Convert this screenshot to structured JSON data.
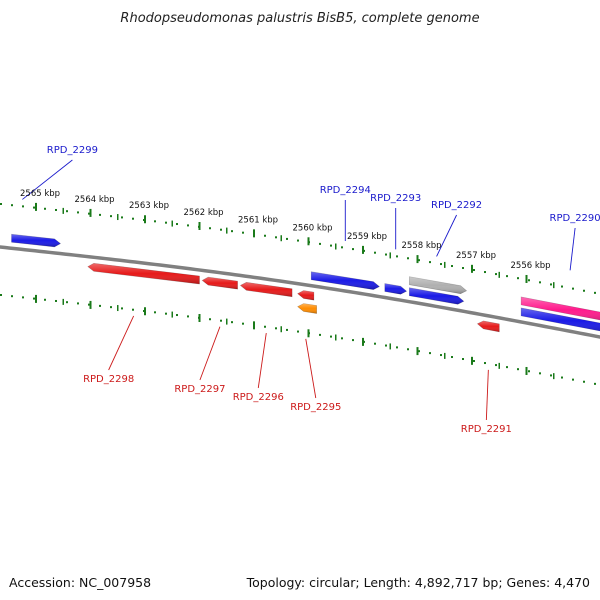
{
  "title": "Rhodopseudomonas palustris BisB5, complete genome",
  "footer": {
    "accession": "Accession: NC_007958",
    "summary": "Topology: circular; Length: 4,892,717 bp; Genes: 4,470"
  },
  "colors": {
    "backbone": "#808080",
    "tick": "#1a7a1a",
    "forward_label": "#1a1acc",
    "reverse_label": "#cc1a1a"
  },
  "tick_labels": [
    {
      "text": "2565 kbp",
      "kbp": 2565
    },
    {
      "text": "2564 kbp",
      "kbp": 2564
    },
    {
      "text": "2563 kbp",
      "kbp": 2563
    },
    {
      "text": "2562 kbp",
      "kbp": 2562
    },
    {
      "text": "2561 kbp",
      "kbp": 2561
    },
    {
      "text": "2560 kbp",
      "kbp": 2560
    },
    {
      "text": "2559 kbp",
      "kbp": 2559
    },
    {
      "text": "2558 kbp",
      "kbp": 2558
    },
    {
      "text": "2557 kbp",
      "kbp": 2557
    },
    {
      "text": "2556 kbp",
      "kbp": 2556
    }
  ],
  "genes": [
    {
      "label": "",
      "strand": "forward",
      "start_kbp": 2565.45,
      "end_kbp": 2564.55,
      "color": "#1a1ae6"
    },
    {
      "label": "RPD_2299",
      "strand": "forward",
      "start_kbp": 2565.3,
      "end_kbp": 2565.2,
      "color": "#1a1ae6",
      "label_only": true
    },
    {
      "label": "RPD_2298",
      "strand": "reverse",
      "start_kbp": 2564.05,
      "end_kbp": 2562.0,
      "color": "#e61a1a"
    },
    {
      "label": "RPD_2297",
      "strand": "reverse",
      "start_kbp": 2561.95,
      "end_kbp": 2561.3,
      "color": "#e61a1a"
    },
    {
      "label": "RPD_2296",
      "strand": "reverse",
      "start_kbp": 2561.25,
      "end_kbp": 2560.3,
      "color": "#e61a1a"
    },
    {
      "label": "RPD_2295",
      "strand": "reverse",
      "start_kbp": 2560.2,
      "end_kbp": 2559.9,
      "color": "#e61a1a"
    },
    {
      "label": "",
      "strand": "reverse-inner",
      "start_kbp": 2560.2,
      "end_kbp": 2559.85,
      "color": "#ff8c00"
    },
    {
      "label": "RPD_2294",
      "strand": "forward",
      "start_kbp": 2559.95,
      "end_kbp": 2558.7,
      "color": "#1a1ae6"
    },
    {
      "label": "RPD_2293",
      "strand": "forward",
      "start_kbp": 2558.6,
      "end_kbp": 2558.2,
      "color": "#1a1ae6"
    },
    {
      "label": "RPD_2292",
      "strand": "forward",
      "start_kbp": 2558.15,
      "end_kbp": 2557.15,
      "color": "#1a1ae6"
    },
    {
      "label": "",
      "strand": "forward-outer",
      "start_kbp": 2558.15,
      "end_kbp": 2557.1,
      "color": "#b0b0b0"
    },
    {
      "label": "RPD_2291",
      "strand": "reverse",
      "start_kbp": 2556.9,
      "end_kbp": 2556.5,
      "color": "#e61a1a"
    },
    {
      "label": "RPD_2290",
      "strand": "forward-outer",
      "start_kbp": 2556.1,
      "end_kbp": 2554.3,
      "color": "#ff1a8c"
    },
    {
      "label": "",
      "strand": "forward",
      "start_kbp": 2556.1,
      "end_kbp": 2554.3,
      "color": "#1a1ae6"
    }
  ]
}
